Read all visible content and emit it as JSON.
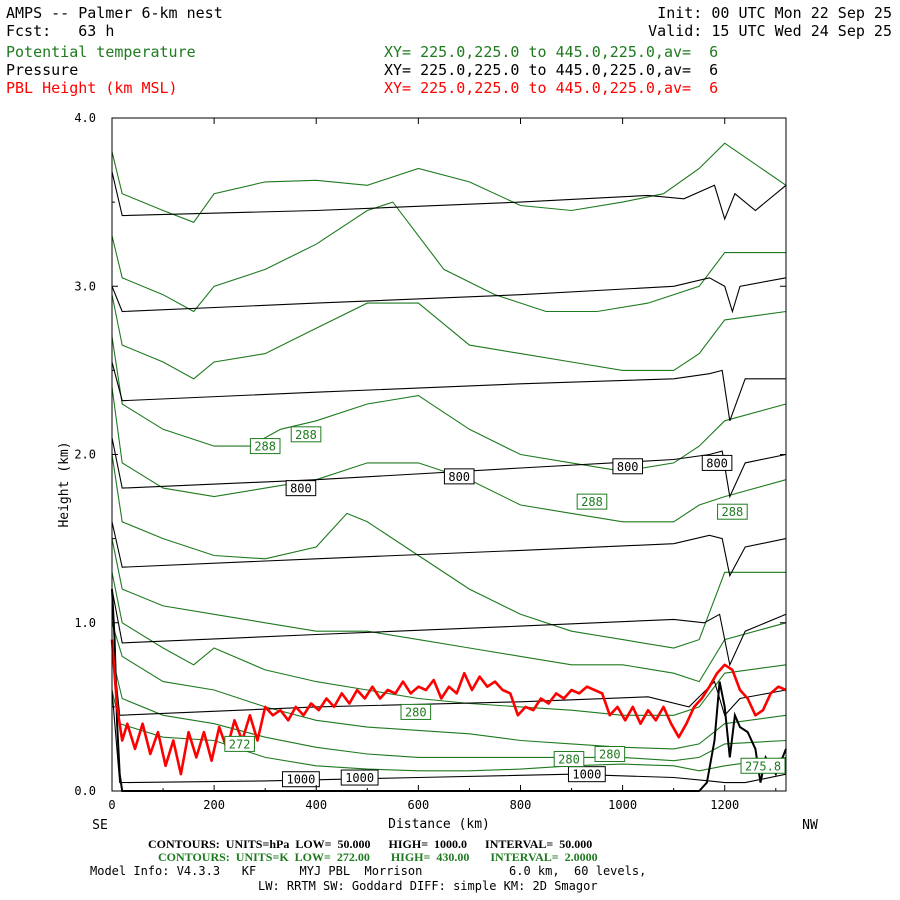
{
  "header": {
    "title": "AMPS -- Palmer 6-km nest",
    "init": "Init: 00 UTC Mon 22 Sep 25",
    "fcst_label": "Fcst:",
    "fcst_value": "63 h",
    "valid": "Valid: 15 UTC Wed 24 Sep 25",
    "legend": [
      {
        "name": "Potential temperature",
        "line": "XY= 225.0,225.0 to 445.0,225.0,av=  6",
        "color": "#1e7a1e"
      },
      {
        "name": "Pressure",
        "line": "XY= 225.0,225.0 to 445.0,225.0,av=  6",
        "color": "#000000"
      },
      {
        "name": "PBL Height (km MSL)",
        "line": "XY= 225.0,225.0 to 445.0,225.0,av=  6",
        "color": "#ff0000"
      }
    ]
  },
  "footer": {
    "contours_p": {
      "label": "CONTOURS:",
      "units": "UNITS=hPa",
      "low": "LOW=  50.000",
      "high": "HIGH=  1000.0",
      "interval": "INTERVAL=  50.000"
    },
    "contours_t": {
      "label": "CONTOURS:",
      "units": "UNITS=K",
      "low": "LOW=  272.00",
      "high": "HIGH=  430.00",
      "interval": "INTERVAL=  2.0000"
    },
    "model_info_1": "Model Info: V4.3.3   KF      MYJ PBL  Morrison            6.0 km,  60 levels,",
    "model_info_2": "LW: RRTM SW: Goddard DIFF: simple KM: 2D Smagor"
  },
  "chart_data": {
    "type": "line",
    "xlabel": "Distance (km)",
    "ylabel": "Height (km)",
    "xlim": [
      0,
      1320
    ],
    "ylim": [
      0,
      4.0
    ],
    "x_ticks": [
      "0",
      "200",
      "400",
      "600",
      "800",
      "1000",
      "1200"
    ],
    "y_ticks": [
      "0.0",
      "1.0",
      "2.0",
      "3.0",
      "4.0"
    ],
    "left_end": "SE",
    "right_end": "NW",
    "colors": {
      "theta": "#1e7a1e",
      "pressure": "#000000",
      "pbl": "#ff0000"
    },
    "pressure_isobars": [
      {
        "level": 650,
        "x": [
          0,
          20,
          400,
          800,
          1050,
          1120,
          1180,
          1200,
          1220,
          1260,
          1320
        ],
        "y": [
          3.68,
          3.42,
          3.45,
          3.5,
          3.54,
          3.52,
          3.6,
          3.4,
          3.55,
          3.45,
          3.6
        ]
      },
      {
        "level": 700,
        "x": [
          0,
          20,
          400,
          800,
          1100,
          1170,
          1200,
          1215,
          1230,
          1320
        ],
        "y": [
          3.0,
          2.85,
          2.9,
          2.95,
          3.0,
          3.05,
          3.0,
          2.85,
          3.0,
          3.05
        ]
      },
      {
        "level": 750,
        "x": [
          0,
          20,
          400,
          800,
          1100,
          1170,
          1195,
          1210,
          1240,
          1320
        ],
        "y": [
          2.55,
          2.32,
          2.37,
          2.42,
          2.45,
          2.48,
          2.5,
          2.2,
          2.45,
          2.45
        ]
      },
      {
        "level": 800,
        "x": [
          0,
          20,
          400,
          800,
          1100,
          1170,
          1195,
          1210,
          1240,
          1320
        ],
        "y": [
          2.1,
          1.8,
          1.85,
          1.92,
          1.97,
          2.0,
          2.02,
          1.75,
          1.95,
          2.0
        ]
      },
      {
        "level": 850,
        "x": [
          0,
          20,
          400,
          800,
          1100,
          1170,
          1195,
          1210,
          1240,
          1320
        ],
        "y": [
          1.6,
          1.33,
          1.38,
          1.43,
          1.47,
          1.52,
          1.5,
          1.28,
          1.45,
          1.5
        ]
      },
      {
        "level": 900,
        "x": [
          0,
          20,
          400,
          800,
          1100,
          1160,
          1190,
          1210,
          1240,
          1320
        ],
        "y": [
          1.2,
          0.88,
          0.93,
          0.98,
          1.02,
          1.0,
          1.05,
          0.75,
          0.95,
          1.05
        ]
      },
      {
        "level": 950,
        "x": [
          0,
          15,
          400,
          800,
          1050,
          1130,
          1180,
          1200,
          1230,
          1320
        ],
        "y": [
          0.9,
          0.45,
          0.5,
          0.53,
          0.56,
          0.5,
          0.65,
          0.45,
          0.55,
          0.6
        ]
      },
      {
        "level": 1000,
        "x": [
          0,
          15,
          300,
          600,
          900,
          1100,
          1170,
          1200,
          1240,
          1320
        ],
        "y": [
          0.6,
          0.05,
          0.06,
          0.08,
          0.1,
          0.08,
          0.06,
          0.05,
          0.05,
          0.1
        ]
      }
    ],
    "isobar_labels": [
      {
        "text": "800",
        "x": 370,
        "y": 1.8
      },
      {
        "text": "800",
        "x": 680,
        "y": 1.87
      },
      {
        "text": "800",
        "x": 1010,
        "y": 1.93
      },
      {
        "text": "800",
        "x": 1185,
        "y": 1.95
      },
      {
        "text": "1000",
        "x": 370,
        "y": 0.07
      },
      {
        "text": "1000",
        "x": 485,
        "y": 0.08
      },
      {
        "text": "1000",
        "x": 930,
        "y": 0.1
      }
    ],
    "isentropes": [
      {
        "x": [
          0,
          20,
          100,
          160,
          200,
          300,
          400,
          500,
          600,
          700,
          800,
          900,
          1000,
          1080,
          1150,
          1200,
          1320
        ],
        "y": [
          3.8,
          3.55,
          3.45,
          3.38,
          3.55,
          3.62,
          3.63,
          3.6,
          3.7,
          3.62,
          3.48,
          3.45,
          3.5,
          3.55,
          3.7,
          3.85,
          3.6
        ]
      },
      {
        "x": [
          0,
          20,
          100,
          160,
          200,
          300,
          400,
          500,
          550,
          650,
          750,
          850,
          950,
          1050,
          1150,
          1200,
          1320
        ],
        "y": [
          3.3,
          3.05,
          2.95,
          2.85,
          3.0,
          3.1,
          3.25,
          3.45,
          3.5,
          3.1,
          2.95,
          2.85,
          2.85,
          2.9,
          3.0,
          3.2,
          3.2
        ]
      },
      {
        "x": [
          0,
          20,
          100,
          160,
          200,
          300,
          400,
          500,
          600,
          700,
          800,
          900,
          1000,
          1100,
          1150,
          1200,
          1320
        ],
        "y": [
          2.95,
          2.65,
          2.55,
          2.45,
          2.55,
          2.6,
          2.75,
          2.9,
          2.9,
          2.65,
          2.6,
          2.55,
          2.5,
          2.5,
          2.6,
          2.8,
          2.85
        ]
      },
      {
        "x": [
          0,
          20,
          100,
          200,
          270,
          330,
          400,
          500,
          600,
          700,
          800,
          900,
          1000,
          1100,
          1150,
          1200,
          1320
        ],
        "y": [
          2.7,
          2.3,
          2.15,
          2.05,
          2.05,
          2.15,
          2.2,
          2.3,
          2.35,
          2.15,
          2.0,
          1.95,
          1.9,
          1.95,
          2.05,
          2.2,
          2.3
        ]
      },
      {
        "x": [
          0,
          20,
          100,
          200,
          300,
          400,
          500,
          600,
          700,
          800,
          900,
          1000,
          1100,
          1150,
          1200,
          1320
        ],
        "y": [
          2.4,
          1.95,
          1.8,
          1.75,
          1.8,
          1.85,
          1.95,
          1.95,
          1.85,
          1.7,
          1.65,
          1.6,
          1.6,
          1.7,
          1.75,
          1.85
        ]
      },
      {
        "x": [
          0,
          20,
          100,
          200,
          300,
          400,
          460,
          500,
          600,
          700,
          800,
          900,
          1000,
          1100,
          1150,
          1200,
          1320
        ],
        "y": [
          2.0,
          1.6,
          1.5,
          1.4,
          1.38,
          1.45,
          1.65,
          1.6,
          1.4,
          1.2,
          1.05,
          0.95,
          0.9,
          0.85,
          0.9,
          1.3,
          1.3
        ]
      },
      {
        "x": [
          0,
          20,
          100,
          200,
          300,
          400,
          500,
          600,
          700,
          800,
          900,
          1000,
          1100,
          1150,
          1200,
          1320
        ],
        "y": [
          1.5,
          1.2,
          1.1,
          1.05,
          1.0,
          0.95,
          0.95,
          0.9,
          0.85,
          0.8,
          0.75,
          0.75,
          0.7,
          0.65,
          0.9,
          1.0
        ]
      },
      {
        "x": [
          0,
          20,
          100,
          160,
          200,
          300,
          400,
          500,
          600,
          700,
          800,
          900,
          1000,
          1100,
          1150,
          1200,
          1320
        ],
        "y": [
          1.3,
          1.0,
          0.85,
          0.75,
          0.85,
          0.72,
          0.65,
          0.6,
          0.55,
          0.52,
          0.5,
          0.48,
          0.45,
          0.45,
          0.5,
          0.7,
          0.75
        ]
      },
      {
        "x": [
          0,
          20,
          100,
          200,
          300,
          400,
          500,
          600,
          700,
          800,
          900,
          1000,
          1100,
          1150,
          1200,
          1320
        ],
        "y": [
          1.0,
          0.8,
          0.65,
          0.6,
          0.5,
          0.42,
          0.38,
          0.36,
          0.34,
          0.3,
          0.28,
          0.26,
          0.25,
          0.28,
          0.4,
          0.45
        ]
      },
      {
        "x": [
          0,
          20,
          100,
          200,
          300,
          400,
          500,
          600,
          700,
          800,
          900,
          1000,
          1100,
          1150,
          1200,
          1320
        ],
        "y": [
          0.8,
          0.55,
          0.45,
          0.4,
          0.32,
          0.26,
          0.22,
          0.2,
          0.2,
          0.2,
          0.2,
          0.2,
          0.18,
          0.2,
          0.28,
          0.3
        ]
      },
      {
        "x": [
          0,
          15,
          100,
          200,
          300,
          400,
          500,
          600,
          700,
          800,
          900,
          1000,
          1100,
          1150,
          1200,
          1320
        ],
        "y": [
          0.6,
          0.4,
          0.32,
          0.3,
          0.2,
          0.15,
          0.13,
          0.12,
          0.12,
          0.13,
          0.15,
          0.16,
          0.15,
          0.12,
          0.15,
          0.2
        ]
      }
    ],
    "isentrope_labels": [
      {
        "text": "288",
        "x": 300,
        "y": 2.05
      },
      {
        "text": "288",
        "x": 380,
        "y": 2.12
      },
      {
        "text": "288",
        "x": 940,
        "y": 1.72
      },
      {
        "text": "288",
        "x": 1215,
        "y": 1.66
      },
      {
        "text": "280",
        "x": 595,
        "y": 0.47
      },
      {
        "text": "272",
        "x": 250,
        "y": 0.28
      },
      {
        "text": "280",
        "x": 895,
        "y": 0.19
      },
      {
        "text": "280",
        "x": 975,
        "y": 0.22
      },
      {
        "text": "275.8",
        "x": 1275,
        "y": 0.15
      }
    ],
    "pbl_height": {
      "name": "PBL Height (km MSL)",
      "x": [
        0,
        10,
        20,
        30,
        45,
        60,
        75,
        90,
        105,
        120,
        135,
        150,
        165,
        180,
        195,
        210,
        225,
        240,
        255,
        270,
        285,
        300,
        315,
        330,
        345,
        360,
        375,
        390,
        405,
        420,
        435,
        450,
        465,
        480,
        495,
        510,
        525,
        540,
        555,
        570,
        585,
        600,
        615,
        630,
        645,
        660,
        675,
        690,
        705,
        720,
        735,
        750,
        765,
        780,
        795,
        810,
        825,
        840,
        855,
        870,
        885,
        900,
        915,
        930,
        945,
        960,
        975,
        990,
        1005,
        1020,
        1035,
        1050,
        1065,
        1080,
        1095,
        1110,
        1125,
        1140,
        1155,
        1170,
        1185,
        1200,
        1215,
        1230,
        1245,
        1260,
        1275,
        1290,
        1305,
        1320
      ],
      "y": [
        0.9,
        0.5,
        0.3,
        0.4,
        0.25,
        0.4,
        0.22,
        0.35,
        0.15,
        0.3,
        0.1,
        0.35,
        0.2,
        0.35,
        0.18,
        0.38,
        0.25,
        0.42,
        0.3,
        0.45,
        0.3,
        0.5,
        0.45,
        0.48,
        0.42,
        0.5,
        0.45,
        0.52,
        0.48,
        0.55,
        0.5,
        0.58,
        0.52,
        0.6,
        0.55,
        0.62,
        0.55,
        0.6,
        0.58,
        0.65,
        0.58,
        0.62,
        0.6,
        0.66,
        0.55,
        0.62,
        0.58,
        0.7,
        0.6,
        0.68,
        0.62,
        0.65,
        0.6,
        0.58,
        0.45,
        0.5,
        0.48,
        0.55,
        0.52,
        0.58,
        0.55,
        0.6,
        0.58,
        0.62,
        0.6,
        0.58,
        0.45,
        0.5,
        0.42,
        0.5,
        0.4,
        0.48,
        0.42,
        0.5,
        0.4,
        0.32,
        0.4,
        0.5,
        0.55,
        0.62,
        0.7,
        0.75,
        0.72,
        0.6,
        0.55,
        0.45,
        0.48,
        0.58,
        0.62,
        0.6
      ]
    },
    "terrain": {
      "x": [
        0,
        5,
        10,
        15,
        20,
        25,
        1150,
        1165,
        1180,
        1190,
        1200,
        1210,
        1220,
        1230,
        1245,
        1260,
        1270,
        1280,
        1290,
        1300,
        1320
      ],
      "y": [
        1.2,
        0.9,
        0.4,
        0.1,
        0.0,
        0.0,
        0.0,
        0.05,
        0.3,
        0.65,
        0.5,
        0.2,
        0.45,
        0.38,
        0.35,
        0.25,
        0.05,
        0.2,
        0.15,
        0.1,
        0.25
      ]
    }
  }
}
